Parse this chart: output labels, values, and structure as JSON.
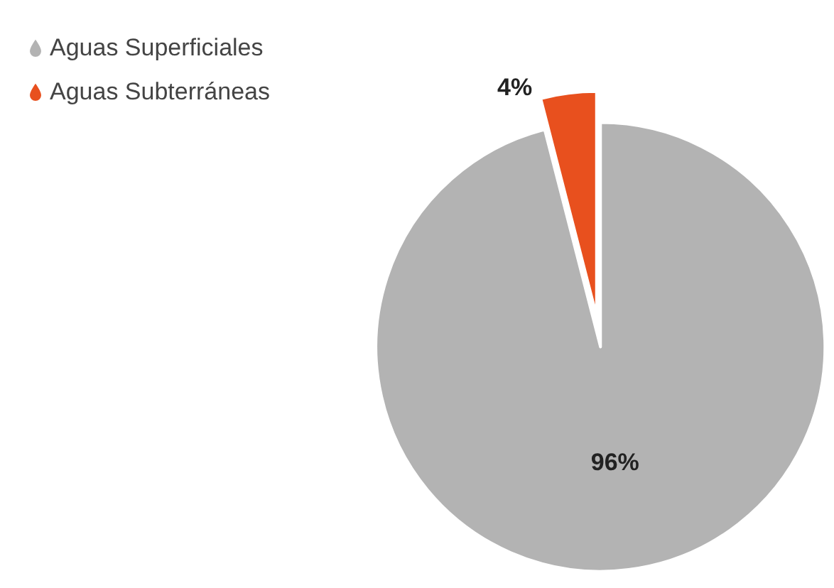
{
  "chart_data": {
    "type": "pie",
    "categories": [
      "Aguas Superficiales",
      "Aguas Subterráneas"
    ],
    "values": [
      96,
      4
    ],
    "colors": [
      "#b3b3b3",
      "#e8501e"
    ],
    "value_labels": [
      "96%",
      "4%"
    ],
    "legend": "top left"
  }
}
